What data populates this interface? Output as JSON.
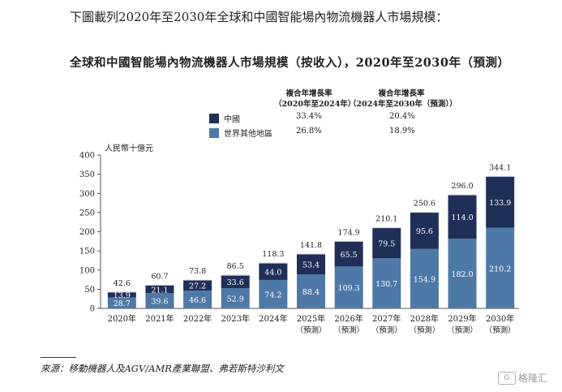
{
  "intro": "下圖載列2020年至2030年全球和中國智能場內物流機器人市場規模：",
  "chart_data": {
    "type": "bar",
    "stacked": true,
    "title": "全球和中國智能場內物流機器人市場規模（按收入），2020年至2030年（預測）",
    "unit_label": "人民幣十億元",
    "ylim": [
      0,
      400
    ],
    "y_ticks": [
      0,
      50,
      100,
      150,
      200,
      250,
      300,
      350,
      400
    ],
    "grid": false,
    "categories": [
      "2020年",
      "2021年",
      "2022年",
      "2023年",
      "2024年",
      "2025年",
      "2026年",
      "2027年",
      "2028年",
      "2029年",
      "2030年"
    ],
    "category_sublabels": [
      "",
      "",
      "",
      "",
      "",
      "（預測）",
      "（預測）",
      "（預測）",
      "（預測）",
      "（預測）",
      "（預測）"
    ],
    "series": [
      {
        "name": "世界其他地區",
        "color": "#4e79a7",
        "values": [
          28.7,
          39.6,
          46.6,
          52.9,
          74.2,
          88.4,
          109.3,
          130.7,
          154.9,
          182.0,
          210.2
        ]
      },
      {
        "name": "中國",
        "color": "#1f2f57",
        "values": [
          13.9,
          21.1,
          27.2,
          33.6,
          44.0,
          53.4,
          65.5,
          79.5,
          95.6,
          114.0,
          133.9
        ]
      }
    ],
    "totals": [
      42.6,
      60.7,
      73.8,
      86.5,
      118.3,
      141.8,
      174.9,
      210.1,
      250.6,
      296.0,
      344.1
    ],
    "legend": {
      "placement": "top",
      "headers": [
        "複合年增長率\n（2020年至2024年）",
        "複合年增長率\n（2024年至2030年（預測））"
      ],
      "rows": [
        {
          "name": "中國",
          "color": "#1f2f57",
          "cagr_2020_2024": "33.4%",
          "cagr_2024_2030": "20.4%"
        },
        {
          "name": "世界其他地區",
          "color": "#4e79a7",
          "cagr_2020_2024": "26.8%",
          "cagr_2024_2030": "18.9%"
        }
      ]
    }
  },
  "source": "來源：移動機器人及AGV/AMR產業聯盟、弗若斯特沙利文",
  "watermark": "格隆汇"
}
